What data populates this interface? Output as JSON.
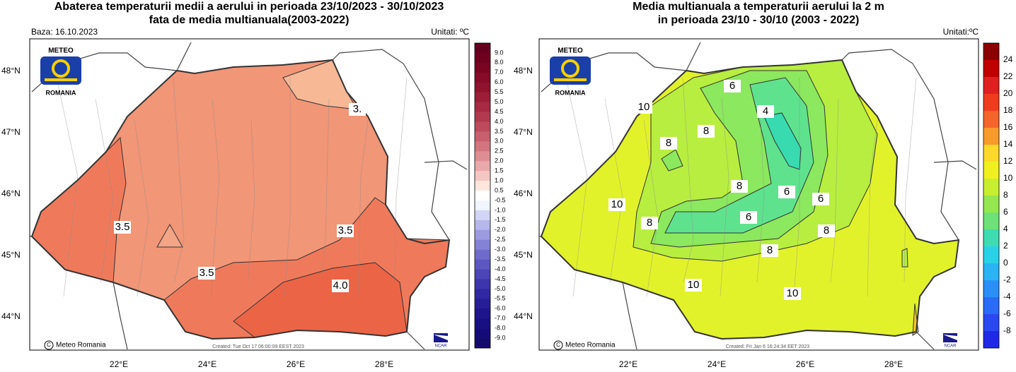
{
  "panels": [
    {
      "title": [
        "Abaterea temperaturii medii a aerului in perioada 23/10/2023 - 30/10/2023",
        "fata de media multianuala(2003-2022)"
      ],
      "base": "Baza: 16.10.2023",
      "units": "Unitati: ºC",
      "lat_labels": [
        "48°N",
        "47°N",
        "46°N",
        "45°N",
        "44°N"
      ],
      "lon_labels": [
        "22°E",
        "24°E",
        "26°E",
        "28°E"
      ],
      "colorbar_labels": [
        "9.0",
        "8.0",
        "7.0",
        "6.0",
        "5.5",
        "5.0",
        "4.5",
        "4.0",
        "3.5",
        "3.0",
        "2.5",
        "2.0",
        "1.5",
        "1.0",
        "0.5",
        "-0.5",
        "-1.0",
        "-1.5",
        "-2.0",
        "-2.5",
        "-3.0",
        "-3.5",
        "-4.0",
        "-4.5",
        "-5.0",
        "-5.5",
        "-6.0",
        "-7.0",
        "-8.0",
        "-9.0"
      ],
      "contour_labels": [
        "3.5",
        "3.5",
        "3.5",
        "4.0",
        "3."
      ],
      "logo": [
        "METEO",
        "ROMANIA"
      ],
      "credit": "Meteo Romania",
      "created": "Created: Tue Oct 17 06:00:09 EEST 2023",
      "ncar": "NCAR"
    },
    {
      "title": [
        "Media multianuala a temperaturii aerului la 2 m",
        "in perioada 23/10 - 30/10 (2003 - 2022)"
      ],
      "units": "Unitati:ºC",
      "lat_labels": [
        "48°N",
        "47°N",
        "46°N",
        "45°N",
        "44°N"
      ],
      "lon_labels": [
        "22°E",
        "24°E",
        "26°E",
        "28°E"
      ],
      "colorbar_labels": [
        "24",
        "22",
        "20",
        "18",
        "16",
        "14",
        "12",
        "10",
        "8",
        "6",
        "4",
        "2",
        "0",
        "-2",
        "-4",
        "-6",
        "-8"
      ],
      "contour_labels": [
        "10",
        "6",
        "4",
        "8",
        "8",
        "10",
        "8",
        "8",
        "6",
        "6",
        "6",
        "8",
        "8",
        "10",
        "10"
      ],
      "logo": [
        "METEO",
        "ROMANIA"
      ],
      "credit": "Meteo Romania",
      "created": "Created: Fri Jan  6 16:24:34 EET 2023",
      "ncar": "NCAR"
    }
  ]
}
